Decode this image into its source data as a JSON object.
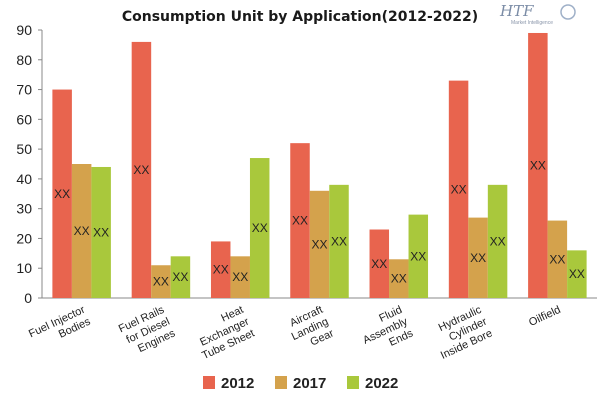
{
  "logo": {
    "main": "HTF",
    "sub": "Market Intelligence"
  },
  "chart_data": {
    "type": "bar",
    "title": "Consumption Unit by  Application(2012-2022)",
    "categories": [
      [
        "Fuel Injector",
        "Bodies"
      ],
      [
        "Fuel Rails",
        "for Diesel",
        "Engines"
      ],
      [
        "Heat",
        "Exchanger",
        "Tube Sheet"
      ],
      [
        "Aircraft",
        "Landing",
        "Gear"
      ],
      [
        "Fluid",
        "Assembly",
        "Ends"
      ],
      [
        "Hydraulic",
        "Cylinder",
        "Inside Bore"
      ],
      [
        "Oilfield"
      ]
    ],
    "series": [
      {
        "name": "2012",
        "color": "#e8644e",
        "values": [
          70,
          86,
          19,
          52,
          23,
          73,
          89
        ]
      },
      {
        "name": "2017",
        "color": "#d4a24c",
        "values": [
          45,
          11,
          14,
          36,
          13,
          27,
          26
        ]
      },
      {
        "name": "2022",
        "color": "#a9c83c",
        "values": [
          44,
          14,
          47,
          38,
          28,
          38,
          16
        ]
      }
    ],
    "data_label": "XX",
    "ylim": [
      0,
      90
    ],
    "yticks": [
      0,
      10,
      20,
      30,
      40,
      50,
      60,
      70,
      80,
      90
    ],
    "xlabel": "",
    "ylabel": "",
    "grid": false,
    "legend": "bottom"
  }
}
